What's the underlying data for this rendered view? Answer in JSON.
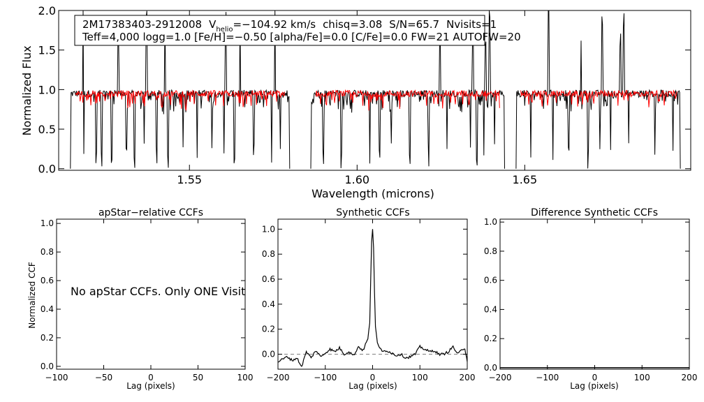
{
  "colors": {
    "observed": "#000000",
    "model": "#ff0000",
    "zero_line": "#808080"
  },
  "header": {
    "line1": {
      "star_id": "2M17383403-2912008",
      "vhelio_label": "V",
      "vhelio_sub": "helio",
      "vhelio_value": "=−104.92 km/s",
      "chisq": "chisq=3.08",
      "snr": "S/N=65.7",
      "nvisits": "Nvisits=1"
    },
    "line2": "Teff=4,000 logg=1.0 [Fe/H]=−0.50 [alpha/Fe]=0.0 [C/Fe]=0.0 FW=21 AUTOFW=20"
  },
  "message": "No apStar CCFs.  Only ONE Visit",
  "chart_data": [
    {
      "type": "line",
      "name": "spectrum",
      "xlabel": "Wavelength (microns)",
      "ylabel": "Normalized Flux",
      "xlim": [
        1.511,
        1.6995
      ],
      "ylim": [
        -0.02,
        2.0
      ],
      "xticks": [
        1.55,
        1.6,
        1.65
      ],
      "xtick_labels": [
        "1.55",
        "1.60",
        "1.65"
      ],
      "yticks": [
        0.0,
        0.5,
        1.0,
        1.5,
        2.0
      ],
      "ytick_labels": [
        "0.0",
        "0.5",
        "1.0",
        "1.5",
        "2.0"
      ],
      "chips": [
        [
          1.5145,
          1.58
        ],
        [
          1.5862,
          1.644
        ],
        [
          1.6474,
          1.6965
        ]
      ],
      "model_chips": [
        [
          1.516,
          1.5785
        ],
        [
          1.5877,
          1.6425
        ],
        [
          1.6488,
          1.6955
        ]
      ],
      "continuum": 0.95,
      "observed_dips": [
        1.5185,
        1.5222,
        1.5238,
        1.5268,
        1.5312,
        1.5336,
        1.5365,
        1.5402,
        1.5436,
        1.5481,
        1.5523,
        1.5567,
        1.5603,
        1.5634,
        1.5692,
        1.5745,
        1.5771,
        1.5899,
        1.5953,
        1.6038,
        1.6067,
        1.6102,
        1.6157,
        1.6213,
        1.6268,
        1.6338,
        1.6357,
        1.6378,
        1.641,
        1.6518,
        1.6584,
        1.6631,
        1.6689,
        1.6724,
        1.6756,
        1.681,
        1.6888,
        1.6942
      ],
      "observed_spikes": [
        1.5183,
        1.5288,
        1.5372,
        1.5427,
        1.5608,
        1.5651,
        1.5755,
        1.6247,
        1.6345,
        1.6383,
        1.6395,
        1.6571,
        1.6668,
        1.6731,
        1.6785,
        1.6795
      ]
    },
    {
      "type": "line",
      "name": "apstar-ccf",
      "title": "apStar−relative CCFs",
      "xlabel": "Lag (pixels)",
      "ylabel": "Normalized CCF",
      "xlim": [
        -100,
        100
      ],
      "ylim": [
        -0.02,
        1.03
      ],
      "xticks": [
        -100,
        -50,
        0,
        50,
        100
      ],
      "xtick_labels": [
        "−100",
        "−50",
        "0",
        "50",
        "100"
      ],
      "yticks": [
        0.0,
        0.2,
        0.4,
        0.6,
        0.8,
        1.0
      ],
      "ytick_labels": [
        "0.0",
        "0.2",
        "0.4",
        "0.6",
        "0.8",
        "1.0"
      ],
      "series": []
    },
    {
      "type": "line",
      "name": "synthetic-ccf",
      "title": "Synthetic CCFs",
      "xlabel": "Lag (pixels)",
      "xlim": [
        -200,
        200
      ],
      "ylim": [
        -0.12,
        1.08
      ],
      "xticks": [
        -200,
        -100,
        0,
        100,
        200
      ],
      "xtick_labels": [
        "−200",
        "−100",
        "0",
        "100",
        "200"
      ],
      "yticks": [
        0.0,
        0.2,
        0.4,
        0.6,
        0.8,
        1.0
      ],
      "ytick_labels": [
        "0.0",
        "0.2",
        "0.4",
        "0.6",
        "0.8",
        "1.0"
      ],
      "zero_line": 0.0,
      "x": [
        -200,
        -190,
        -180,
        -170,
        -160,
        -150,
        -140,
        -130,
        -120,
        -110,
        -100,
        -90,
        -80,
        -70,
        -60,
        -50,
        -40,
        -30,
        -20,
        -15,
        -10,
        -6,
        -4,
        -2,
        0,
        2,
        4,
        6,
        10,
        15,
        20,
        30,
        40,
        50,
        60,
        70,
        80,
        90,
        100,
        110,
        120,
        130,
        140,
        150,
        160,
        170,
        180,
        190,
        195,
        200
      ],
      "y": [
        -0.06,
        -0.04,
        -0.02,
        -0.05,
        -0.03,
        -0.1,
        0.02,
        -0.03,
        0.03,
        -0.02,
        0.01,
        0.04,
        0.02,
        0.05,
        0.0,
        0.02,
        -0.01,
        0.06,
        0.03,
        0.08,
        0.12,
        0.25,
        0.6,
        0.9,
        1.0,
        0.85,
        0.5,
        0.22,
        0.1,
        0.05,
        0.02,
        0.03,
        0.01,
        -0.01,
        0.0,
        -0.03,
        -0.02,
        0.0,
        0.06,
        0.04,
        0.02,
        0.03,
        0.0,
        0.0,
        0.02,
        0.06,
        0.0,
        0.04,
        0.05,
        -0.06
      ]
    },
    {
      "type": "line",
      "name": "difference-ccf",
      "title": "Difference Synthetic CCFs",
      "xlabel": "Lag (pixels)",
      "xlim": [
        -200,
        200
      ],
      "ylim": [
        -0.01,
        1.02
      ],
      "xticks": [
        -200,
        -100,
        0,
        100,
        200
      ],
      "xtick_labels": [
        "−200",
        "−100",
        "0",
        "100",
        "200"
      ],
      "yticks": [
        0.0,
        0.2,
        0.4,
        0.6,
        0.8,
        1.0
      ],
      "ytick_labels": [
        "0.0",
        "0.2",
        "0.4",
        "0.6",
        "0.8",
        "1.0"
      ],
      "x": [
        -200,
        200
      ],
      "y": [
        0.0,
        0.0
      ]
    }
  ]
}
